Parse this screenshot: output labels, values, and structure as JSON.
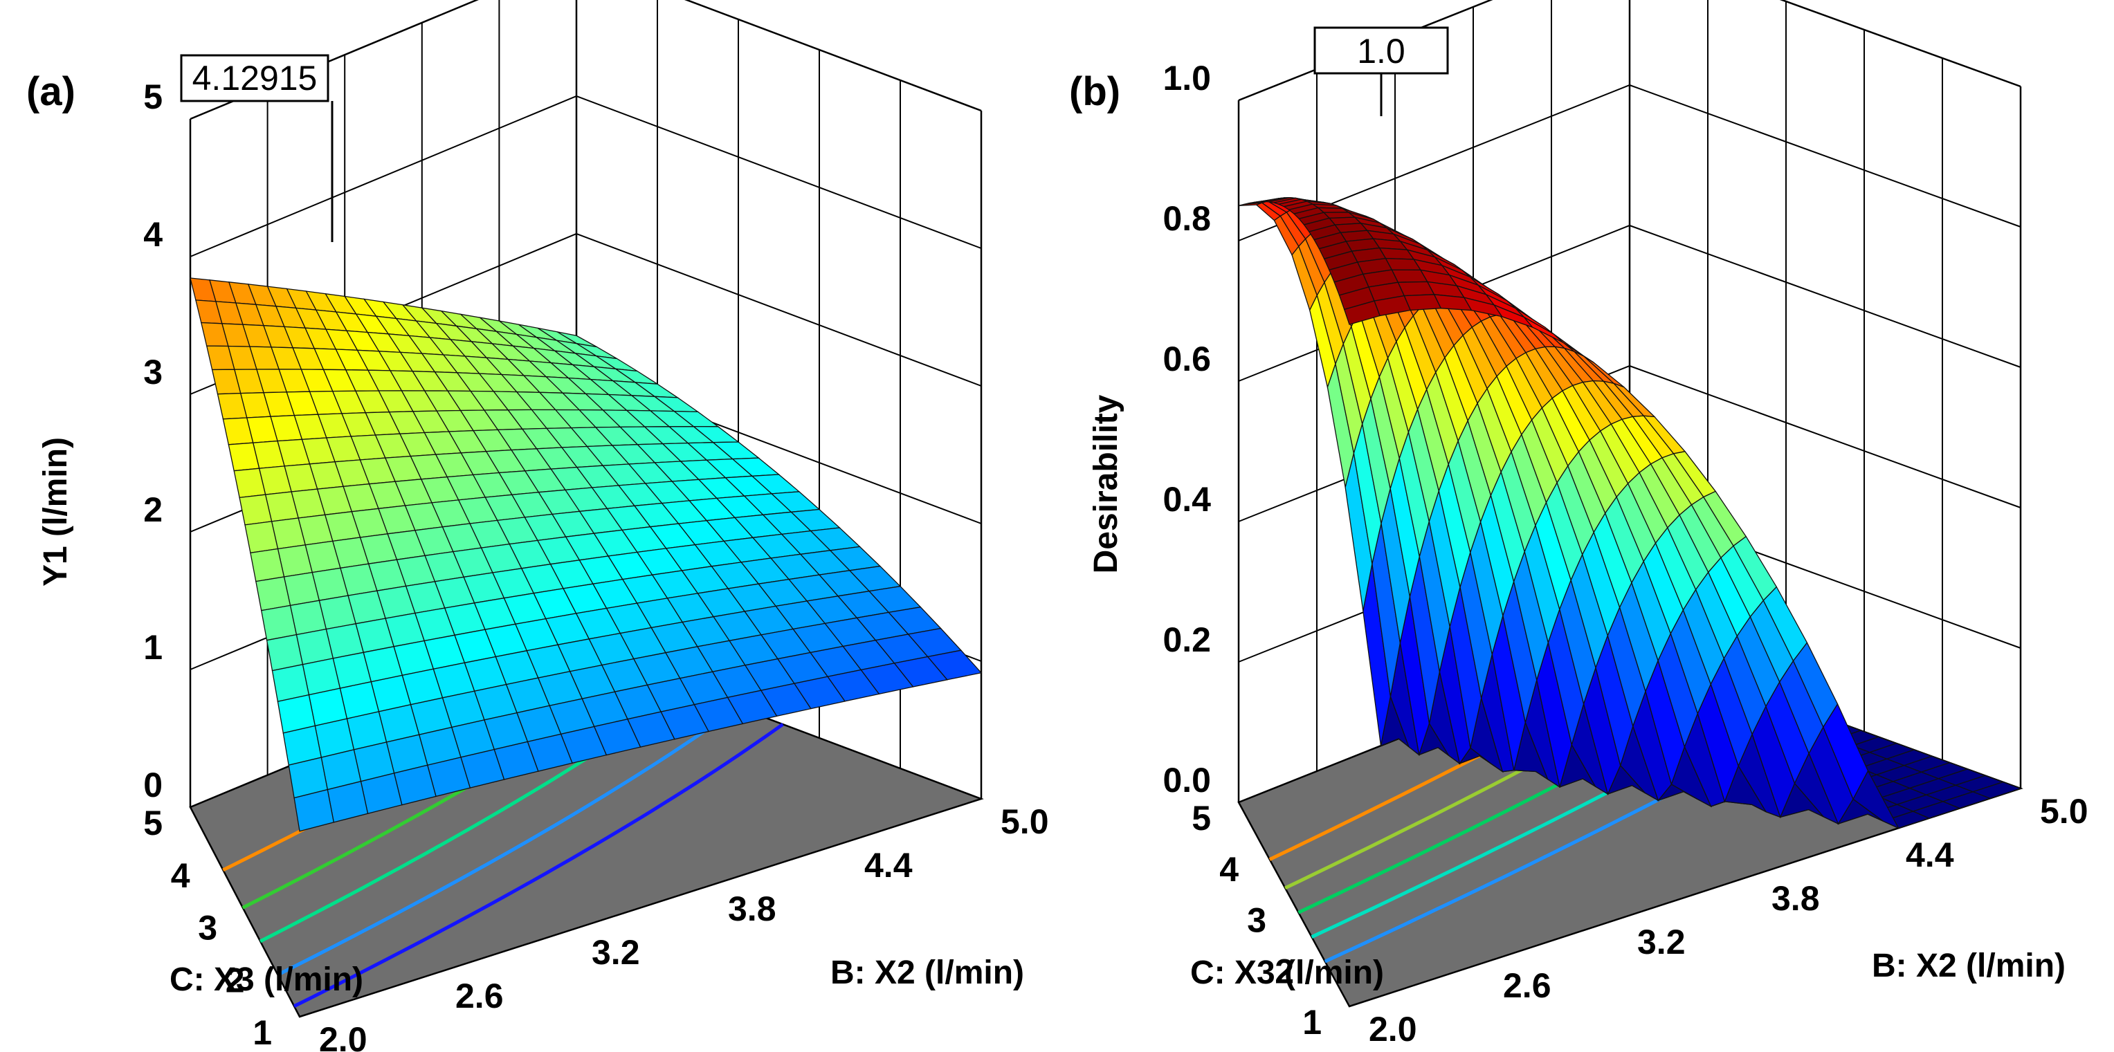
{
  "chart_data": [
    {
      "type": "surface3d",
      "panel_label": "(a)",
      "callout": "4.12915",
      "zlabel": "Y1 (l/min)",
      "xlabel": "B: X2 (l/min)",
      "ylabel": "C: X3 (l/min)",
      "z_ticks": [
        "0",
        "1",
        "2",
        "3",
        "4",
        "5"
      ],
      "x_ticks": [
        "2.0",
        "2.6",
        "3.2",
        "3.8",
        "4.4",
        "5.0"
      ],
      "y_ticks": [
        "1",
        "2",
        "3",
        "4",
        "5"
      ],
      "zlim": [
        0,
        5
      ],
      "xlim": [
        2.0,
        5.0
      ],
      "ylim": [
        1,
        5
      ],
      "surface_corners": {
        "x2.0_x3_1": 1.3,
        "x2.0_x3_5": 3.9,
        "x5.0_x3_1": 1.0,
        "x5.0_x3_5": 2.4
      },
      "max_value": 4.12915,
      "colors": {
        "floor": "#6e6e6e",
        "low": "#0000ff",
        "high": "#ff0000"
      }
    },
    {
      "type": "surface3d",
      "panel_label": "(b)",
      "callout": "1.0",
      "zlabel": "Desirability",
      "xlabel": "B: X2 (l/min)",
      "ylabel": "C: X3 (l/min)",
      "z_ticks": [
        "0.0",
        "0.2",
        "0.4",
        "0.6",
        "0.8",
        "1.0"
      ],
      "x_ticks": [
        "2.0",
        "2.6",
        "3.2",
        "3.8",
        "4.4",
        "5.0"
      ],
      "y_ticks": [
        "1",
        "2",
        "3",
        "4",
        "5"
      ],
      "zlim": [
        0,
        1
      ],
      "xlim": [
        2.0,
        5.0
      ],
      "ylim": [
        1,
        5
      ],
      "max_value": 1.0,
      "colors": {
        "floor": "#6e6e6e",
        "low": "#0000ff",
        "high": "#ff0000"
      }
    }
  ]
}
